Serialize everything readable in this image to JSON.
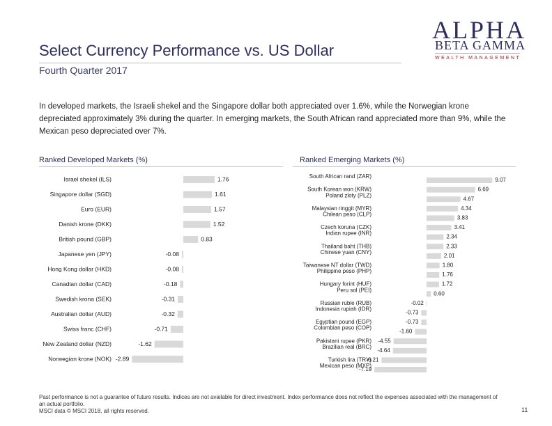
{
  "header": {
    "title": "Select Currency Performance vs. US Dollar",
    "subtitle": "Fourth Quarter 2017"
  },
  "logo": {
    "main": "ALPHA",
    "sub": "BETA GAMMA",
    "tagline": "WEALTH MANAGEMENT"
  },
  "intro": "In developed markets, the Israeli shekel and the Singapore dollar both appreciated over 1.6%, while the Norwegian krone depreciated approximately 3% during the quarter. In emerging markets, the South African rand appreciated more than 9%, while the Mexican peso depreciated over 7%.",
  "colors": {
    "bar": "#d9d9d9",
    "title": "#2e2e5c"
  },
  "chart_data": [
    {
      "type": "bar",
      "orientation": "horizontal",
      "title": "Ranked Developed Markets (%)",
      "categories": [
        "Israel shekel (ILS)",
        "Singapore dollar (SGD)",
        "Euro (EUR)",
        "Danish krone (DKK)",
        "British pound (GBP)",
        "Japanese yen (JPY)",
        "Hong Kong dollar (HKD)",
        "Canadian dollar (CAD)",
        "Swedish krona (SEK)",
        "Australian dollar (AUD)",
        "Swiss franc (CHF)",
        "New Zealand dollar (NZD)",
        "Norwegian krone (NOK)"
      ],
      "labels": [
        "1.76",
        "1.61",
        "1.57",
        "1.52",
        "0.83",
        "-0.08",
        "-0.08",
        "-0.18",
        "-0.31",
        "-0.32",
        "-0.71",
        "-1.62",
        "-2.89"
      ],
      "values": [
        1.76,
        1.61,
        1.57,
        1.52,
        0.83,
        -0.08,
        -0.08,
        -0.18,
        -0.31,
        -0.32,
        -0.71,
        -1.62,
        -2.89
      ]
    },
    {
      "type": "bar",
      "orientation": "horizontal",
      "title": "Ranked Emerging Markets (%)",
      "categories": [
        "South African rand (ZAR)",
        "South Korean won (KRW)",
        "Poland zloty (PLZ)",
        "Malaysian ringgit (MYR)",
        "Chilean peso (CLP)",
        "Czech koruna (CZK)",
        "Indian rupee (INR)",
        "Thailand baht (THB)",
        "Chinese yuan (CNY)",
        "Taiwanese NT dollar (TWD)",
        "Philippine peso (PHP)",
        "Hungary forint (HUF)",
        "Peru sol (PEI)",
        "Russian ruble (RUB)",
        "Indonesia rupiah (IDR)",
        "Egyptian pound (EGP)",
        "Colombian peso (COP)",
        "Pakistani rupee (PKR)",
        "Brazilian real (BRC)",
        "Turkish lira (TRY)",
        "Mexican peso (MXP)"
      ],
      "labels": [
        "9.07",
        "6.69",
        "4.67",
        "4.34",
        "3.83",
        "3.41",
        "2.34",
        "2.33",
        "2.01",
        "1.80",
        "1.76",
        "1.72",
        "0.60",
        "-0.02",
        "-0.73",
        "-0.73",
        "-1.60",
        "-4.55",
        "-4.64",
        "-6.21",
        "-7.19"
      ],
      "values": [
        9.07,
        6.69,
        4.67,
        4.34,
        3.83,
        3.41,
        2.34,
        2.33,
        2.01,
        1.8,
        1.76,
        1.72,
        0.6,
        -0.02,
        -0.73,
        -0.73,
        -1.6,
        -4.55,
        -4.64,
        -6.21,
        -7.19
      ]
    }
  ],
  "footer": {
    "disclaimer": "Past performance is not a guarantee of future results. Indices are not available for direct investment. Index performance does not reflect the expenses associated with the management of an actual portfolio.",
    "source": "MSCI data © MSCI 2018, all rights reserved.",
    "page": "11"
  }
}
